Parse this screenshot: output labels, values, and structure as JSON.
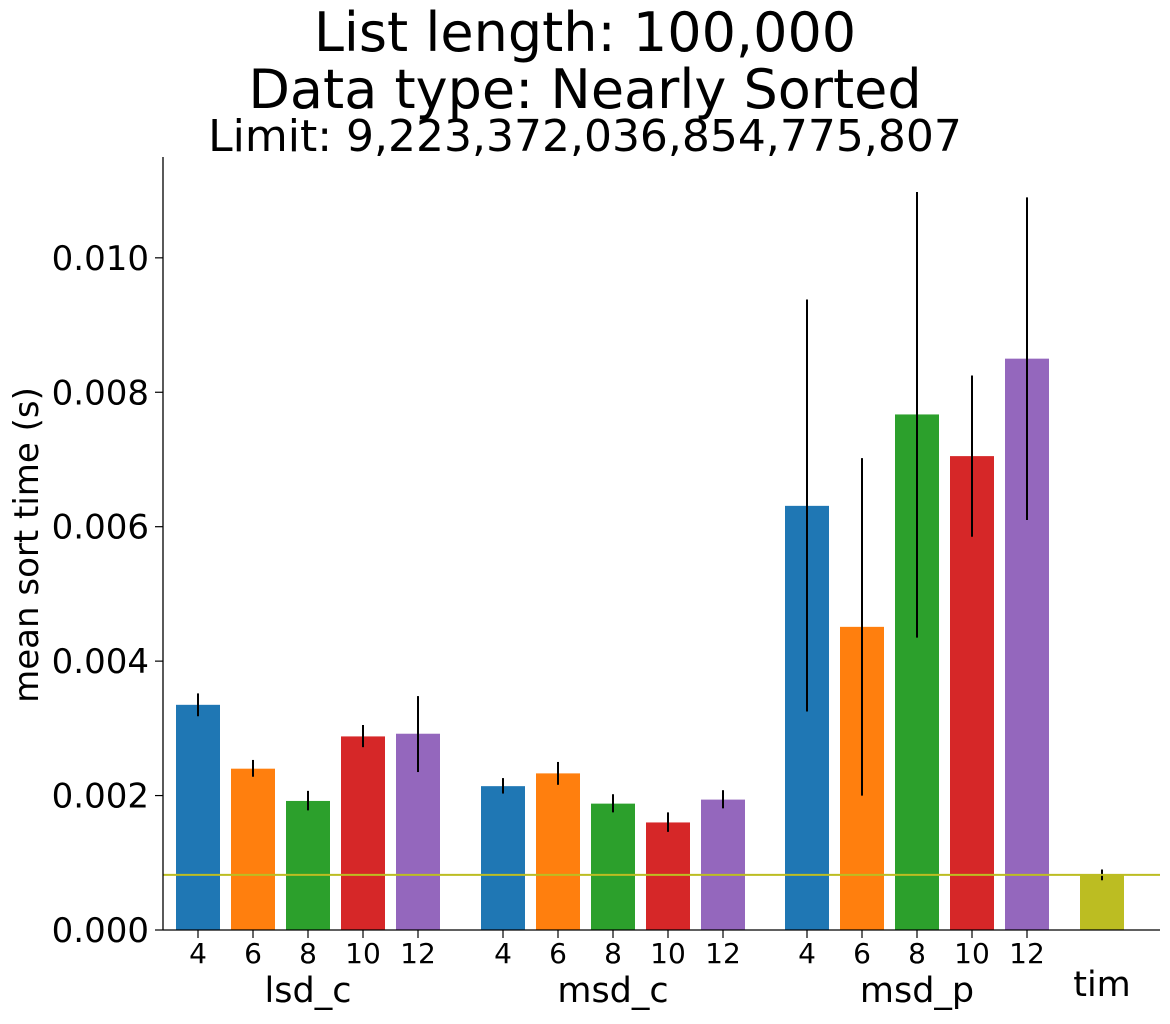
{
  "chart_data": {
    "type": "bar",
    "title": "List length: 100,000",
    "subtitle": "Data type: Nearly Sorted",
    "limit_text": "Limit: 9,223,372,036,854,775,807",
    "ylabel": "mean sort time (s)",
    "ylim": [
      0,
      0.0115
    ],
    "yticks": [
      "0.000",
      "0.002",
      "0.004",
      "0.006",
      "0.008",
      "0.010"
    ],
    "ytick_values": [
      0,
      0.002,
      0.004,
      0.006,
      0.008,
      0.01
    ],
    "groups": [
      {
        "label": "lsd_c",
        "bars": [
          {
            "tick": "4",
            "value": 0.00335,
            "err_low": 0.00318,
            "err_high": 0.00352,
            "color": "#1f77b4"
          },
          {
            "tick": "6",
            "value": 0.0024,
            "err_low": 0.00228,
            "err_high": 0.00253,
            "color": "#ff7f0e"
          },
          {
            "tick": "8",
            "value": 0.00192,
            "err_low": 0.00178,
            "err_high": 0.00207,
            "color": "#2ca02c"
          },
          {
            "tick": "10",
            "value": 0.00288,
            "err_low": 0.00272,
            "err_high": 0.00305,
            "color": "#d62728"
          },
          {
            "tick": "12",
            "value": 0.00292,
            "err_low": 0.00235,
            "err_high": 0.00348,
            "color": "#9467bd"
          }
        ]
      },
      {
        "label": "msd_c",
        "bars": [
          {
            "tick": "4",
            "value": 0.00214,
            "err_low": 0.00203,
            "err_high": 0.00226,
            "color": "#1f77b4"
          },
          {
            "tick": "6",
            "value": 0.00233,
            "err_low": 0.00216,
            "err_high": 0.0025,
            "color": "#ff7f0e"
          },
          {
            "tick": "8",
            "value": 0.00188,
            "err_low": 0.00175,
            "err_high": 0.00202,
            "color": "#2ca02c"
          },
          {
            "tick": "10",
            "value": 0.0016,
            "err_low": 0.00146,
            "err_high": 0.00175,
            "color": "#d62728"
          },
          {
            "tick": "12",
            "value": 0.00194,
            "err_low": 0.00181,
            "err_high": 0.00208,
            "color": "#9467bd"
          }
        ]
      },
      {
        "label": "msd_p",
        "bars": [
          {
            "tick": "4",
            "value": 0.00631,
            "err_low": 0.00325,
            "err_high": 0.00938,
            "color": "#1f77b4"
          },
          {
            "tick": "6",
            "value": 0.00451,
            "err_low": 0.002,
            "err_high": 0.00702,
            "color": "#ff7f0e"
          },
          {
            "tick": "8",
            "value": 0.00767,
            "err_low": 0.00435,
            "err_high": 0.01098,
            "color": "#2ca02c"
          },
          {
            "tick": "10",
            "value": 0.00705,
            "err_low": 0.00585,
            "err_high": 0.00825,
            "color": "#d62728"
          },
          {
            "tick": "12",
            "value": 0.0085,
            "err_low": 0.0061,
            "err_high": 0.0109,
            "color": "#9467bd"
          }
        ]
      },
      {
        "label": "tim",
        "bars": [
          {
            "tick": "",
            "value": 0.00082,
            "err_low": 0.00074,
            "err_high": 0.0009,
            "color": "#bcbd22"
          }
        ]
      }
    ],
    "reference_line": {
      "value": 0.00082,
      "color": "#bcbd22"
    }
  }
}
